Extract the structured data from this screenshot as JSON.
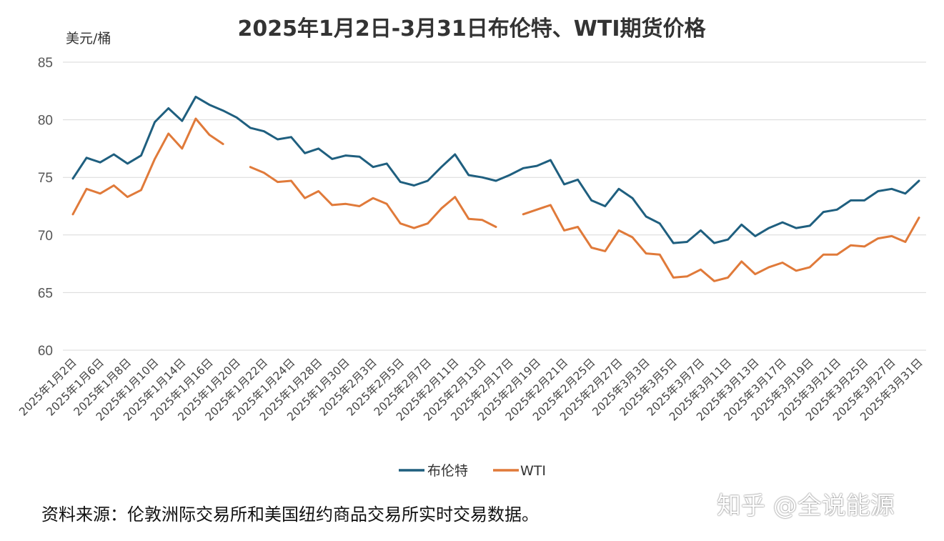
{
  "chart_data": {
    "type": "line",
    "title": "2025年1月2日-3月31日布伦特、WTI期货价格",
    "ylabel": "美元/桶",
    "xlabel": "",
    "ylim": [
      60,
      85
    ],
    "yticks": [
      60,
      65,
      70,
      75,
      80,
      85
    ],
    "grid": true,
    "legend": "bottom",
    "categories": [
      "2025年1月2日",
      "2025年1月3日",
      "2025年1月6日",
      "2025年1月7日",
      "2025年1月8日",
      "2025年1月9日",
      "2025年1月10日",
      "2025年1月13日",
      "2025年1月14日",
      "2025年1月15日",
      "2025年1月16日",
      "2025年1月17日",
      "2025年1月20日",
      "2025年1月21日",
      "2025年1月22日",
      "2025年1月23日",
      "2025年1月24日",
      "2025年1月27日",
      "2025年1月28日",
      "2025年1月29日",
      "2025年1月30日",
      "2025年1月31日",
      "2025年2月3日",
      "2025年2月4日",
      "2025年2月5日",
      "2025年2月6日",
      "2025年2月7日",
      "2025年2月10日",
      "2025年2月11日",
      "2025年2月12日",
      "2025年2月13日",
      "2025年2月14日",
      "2025年2月17日",
      "2025年2月18日",
      "2025年2月19日",
      "2025年2月20日",
      "2025年2月21日",
      "2025年2月24日",
      "2025年2月25日",
      "2025年2月26日",
      "2025年2月27日",
      "2025年2月28日",
      "2025年3月3日",
      "2025年3月4日",
      "2025年3月5日",
      "2025年3月6日",
      "2025年3月7日",
      "2025年3月10日",
      "2025年3月11日",
      "2025年3月12日",
      "2025年3月13日",
      "2025年3月14日",
      "2025年3月17日",
      "2025年3月18日",
      "2025年3月19日",
      "2025年3月20日",
      "2025年3月21日",
      "2025年3月24日",
      "2025年3月25日",
      "2025年3月26日",
      "2025年3月27日",
      "2025年3月28日",
      "2025年3月31日"
    ],
    "xtick_labels": [
      "2025年1月2日",
      "2025年1月6日",
      "2025年1月8日",
      "2025年1月10日",
      "2025年1月14日",
      "2025年1月16日",
      "2025年1月20日",
      "2025年1月22日",
      "2025年1月24日",
      "2025年1月28日",
      "2025年1月30日",
      "2025年2月3日",
      "2025年2月5日",
      "2025年2月7日",
      "2025年2月11日",
      "2025年2月13日",
      "2025年2月17日",
      "2025年2月19日",
      "2025年2月21日",
      "2025年2月25日",
      "2025年2月27日",
      "2025年3月3日",
      "2025年3月5日",
      "2025年3月7日",
      "2025年3月11日",
      "2025年3月13日",
      "2025年3月17日",
      "2025年3月19日",
      "2025年3月21日",
      "2025年3月25日",
      "2025年3月27日",
      "2025年3月31日"
    ],
    "series": [
      {
        "name": "布伦特",
        "color": "#1f5f7f",
        "values": [
          74.9,
          76.7,
          76.3,
          77.0,
          76.2,
          76.9,
          79.8,
          81.0,
          79.9,
          82.0,
          81.3,
          80.8,
          80.2,
          79.3,
          79.0,
          78.3,
          78.5,
          77.1,
          77.5,
          76.6,
          76.9,
          76.8,
          75.9,
          76.2,
          74.6,
          74.3,
          74.7,
          75.9,
          77.0,
          75.2,
          75.0,
          74.7,
          75.2,
          75.8,
          76.0,
          76.5,
          74.4,
          74.8,
          73.0,
          72.5,
          74.0,
          73.2,
          71.6,
          71.0,
          69.3,
          69.4,
          70.4,
          69.3,
          69.6,
          70.9,
          69.9,
          70.6,
          71.1,
          70.6,
          70.8,
          72.0,
          72.2,
          73.0,
          73.0,
          73.8,
          74.0,
          73.6,
          74.7
        ]
      },
      {
        "name": "WTI",
        "color": "#e07a3a",
        "values": [
          71.8,
          74.0,
          73.6,
          74.3,
          73.3,
          73.9,
          76.6,
          78.8,
          77.5,
          80.1,
          78.7,
          77.9,
          null,
          75.9,
          75.4,
          74.6,
          74.7,
          73.2,
          73.8,
          72.6,
          72.7,
          72.5,
          73.2,
          72.7,
          71.0,
          70.6,
          71.0,
          72.3,
          73.3,
          71.4,
          71.3,
          70.7,
          null,
          71.8,
          72.2,
          72.6,
          70.4,
          70.7,
          68.9,
          68.6,
          70.4,
          69.8,
          68.4,
          68.3,
          66.3,
          66.4,
          67.0,
          66.0,
          66.3,
          67.7,
          66.6,
          67.2,
          67.6,
          66.9,
          67.2,
          68.3,
          68.3,
          69.1,
          69.0,
          69.7,
          69.9,
          69.4,
          71.5
        ]
      }
    ]
  },
  "source_text": "资料来源：伦敦洲际交易所和美国纽约商品交易所实时交易数据。",
  "watermark_text": "知乎 @全说能源"
}
